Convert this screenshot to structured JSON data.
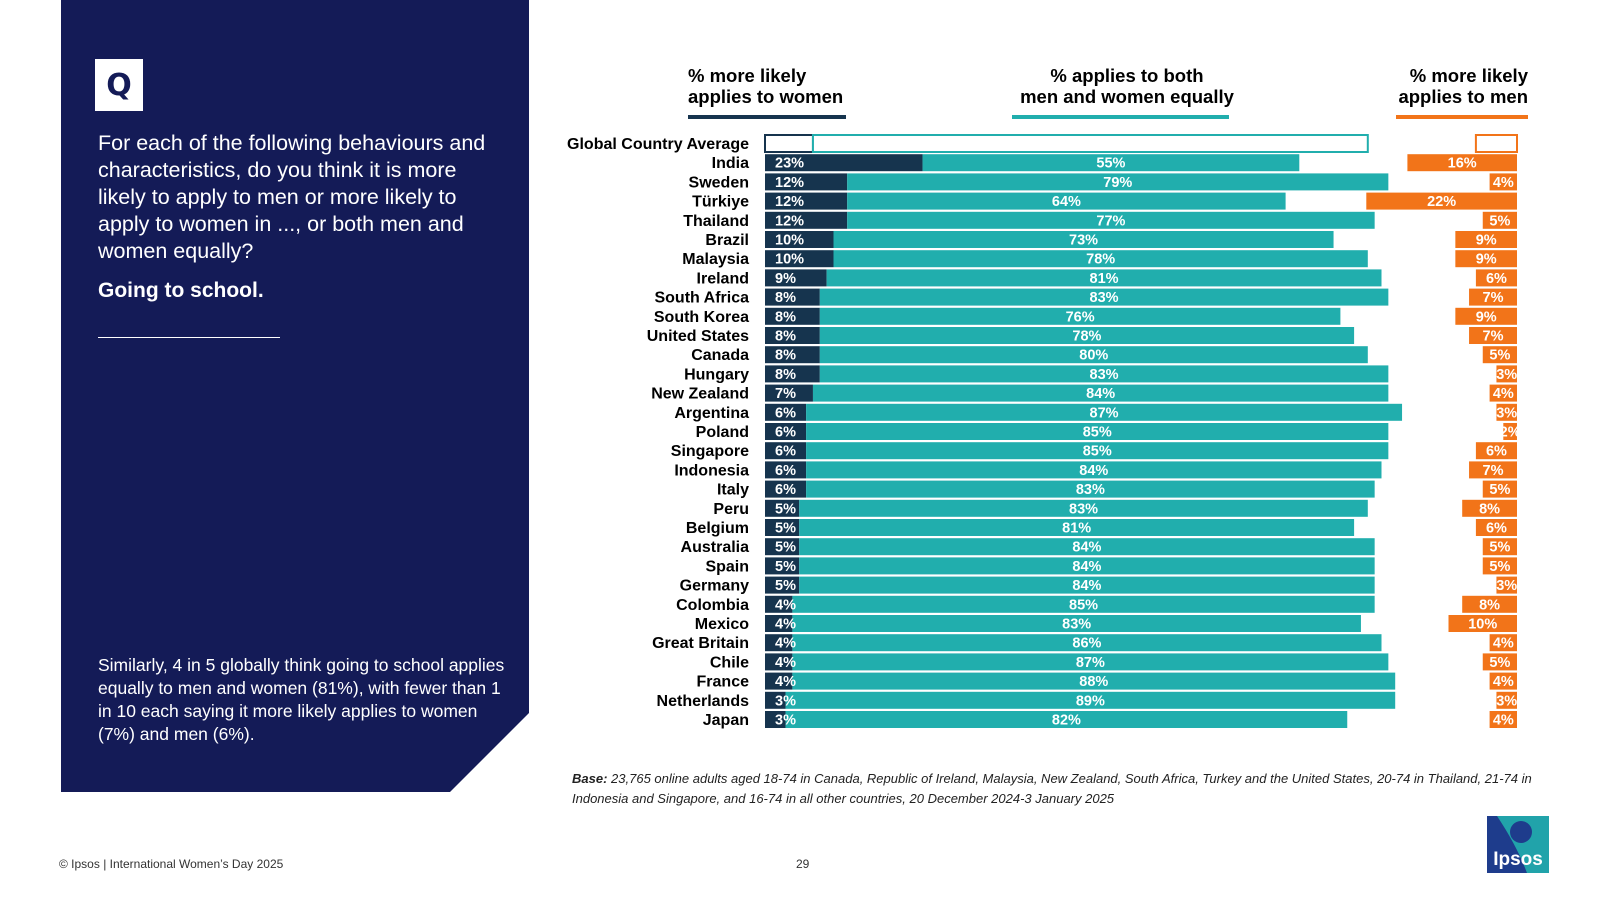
{
  "question": {
    "badge": "Q",
    "text": "For each of the following behaviours and characteristics, do you think it is more likely to apply to men or more likely to apply to women in ..., or both men and women equally?",
    "subheading": "Going to school."
  },
  "summary": "Similarly, 4 in 5 globally think going to school applies equally to men and women (81%), with fewer than 1 in 10 each saying it more likely applies to women (7%) and men (6%).",
  "headers": {
    "women": [
      "% more likely",
      "applies to women"
    ],
    "both": [
      "% applies to both",
      "men and women equally"
    ],
    "men": [
      "% more likely",
      "applies to men"
    ]
  },
  "colors": {
    "women": "#16344e",
    "both": "#21aead",
    "men": "#f27419",
    "panel": "#141b57"
  },
  "chart_data": {
    "type": "bar",
    "orientation": "horizontal-stacked",
    "series": [
      {
        "name": "% more likely applies to women",
        "values": [
          7,
          23,
          12,
          12,
          12,
          10,
          10,
          9,
          8,
          8,
          8,
          8,
          8,
          7,
          6,
          6,
          6,
          6,
          6,
          5,
          5,
          5,
          5,
          5,
          4,
          4,
          4,
          4,
          4,
          3,
          3
        ]
      },
      {
        "name": "% applies to both men and women equally",
        "values": [
          81,
          55,
          79,
          64,
          77,
          73,
          78,
          81,
          83,
          76,
          78,
          80,
          83,
          84,
          87,
          85,
          85,
          84,
          83,
          83,
          81,
          84,
          84,
          84,
          85,
          83,
          86,
          87,
          88,
          89,
          82
        ]
      },
      {
        "name": "% more likely applies to men",
        "values": [
          6,
          16,
          4,
          22,
          5,
          9,
          9,
          6,
          7,
          9,
          7,
          5,
          3,
          4,
          3,
          2,
          6,
          7,
          5,
          8,
          6,
          5,
          5,
          3,
          8,
          10,
          4,
          5,
          4,
          3,
          4
        ]
      }
    ],
    "categories": [
      "Global Country Average",
      "India",
      "Sweden",
      "Türkiye",
      "Thailand",
      "Brazil",
      "Malaysia",
      "Ireland",
      "South Africa",
      "South Korea",
      "United States",
      "Canada",
      "Hungary",
      "New Zealand",
      "Argentina",
      "Poland",
      "Singapore",
      "Indonesia",
      "Italy",
      "Peru",
      "Belgium",
      "Australia",
      "Spain",
      "Germany",
      "Colombia",
      "Mexico",
      "Great Britain",
      "Chile",
      "France",
      "Netherlands",
      "Japan"
    ],
    "value_suffix": "%",
    "xlim": [
      0,
      100
    ]
  },
  "base": {
    "label": "Base:",
    "text": "23,765 online adults aged 18-74 in Canada, Republic of Ireland, Malaysia, New Zealand, South Africa, Turkey and the United States, 20-74 in Thailand, 21-74 in Indonesia and Singapore, and 16-74 in all other countries, 20 December 2024-3 January 2025"
  },
  "footer": {
    "copyright": "© Ipsos | International Women’s Day 2025",
    "page": "29",
    "logo_text": "Ipsos"
  }
}
